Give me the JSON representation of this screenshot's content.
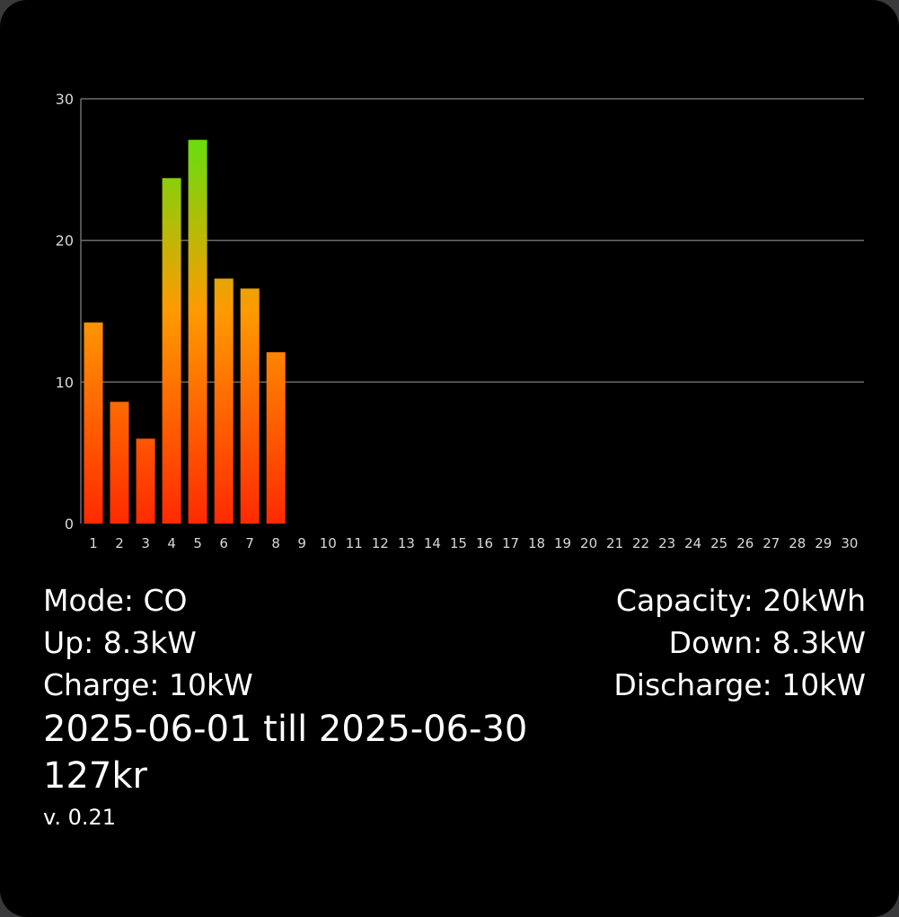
{
  "chart_data": {
    "type": "bar",
    "categories": [
      "1",
      "2",
      "3",
      "4",
      "5",
      "6",
      "7",
      "8",
      "9",
      "10",
      "11",
      "12",
      "13",
      "14",
      "15",
      "16",
      "17",
      "18",
      "19",
      "20",
      "21",
      "22",
      "23",
      "24",
      "25",
      "26",
      "27",
      "28",
      "29",
      "30"
    ],
    "values": [
      14.2,
      8.6,
      6.0,
      24.4,
      27.1,
      17.3,
      16.6,
      12.1,
      null,
      null,
      null,
      null,
      null,
      null,
      null,
      null,
      null,
      null,
      null,
      null,
      null,
      null,
      null,
      null,
      null,
      null,
      null,
      null,
      null,
      null
    ],
    "yticks": [
      0,
      10,
      20,
      30
    ],
    "ylim": [
      0,
      30
    ],
    "grid": true,
    "title": "",
    "xlabel": "",
    "ylabel": "",
    "colors": {
      "bar_low": "#ff2a00",
      "bar_mid": "#ff9a00",
      "bar_high": "#44ee11",
      "grid": "#6e6e6e",
      "tick_text": "#d8d8d8"
    }
  },
  "info": {
    "mode": "Mode: CO",
    "capacity": "Capacity: 20kWh",
    "up": "Up: 8.3kW",
    "down": "Down: 8.3kW",
    "charge": "Charge: 10kW",
    "discharge": "Discharge: 10kW",
    "period": "2025-06-01 till 2025-06-30",
    "cost": "127kr",
    "version": "v. 0.21"
  }
}
